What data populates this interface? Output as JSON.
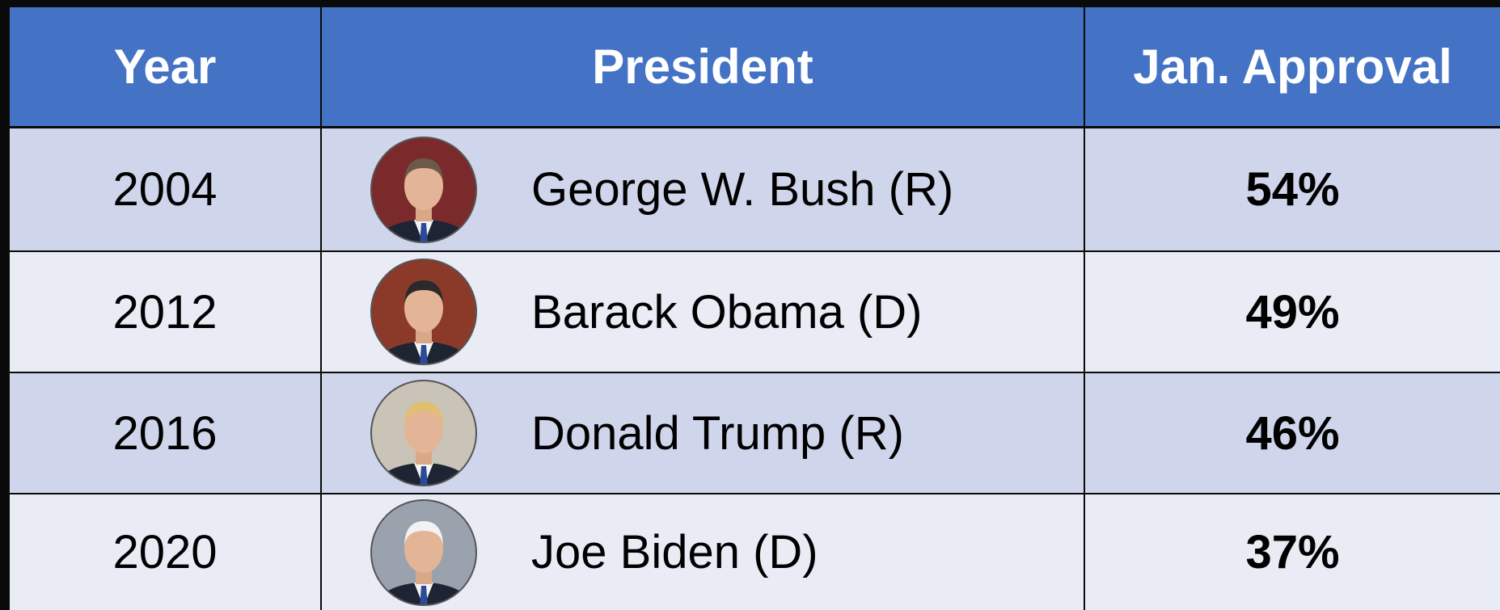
{
  "table": {
    "header": [
      "Year",
      "President",
      "Jan. Approval"
    ],
    "rows": [
      [
        "2004",
        "George W. Bush (R)",
        "54%"
      ],
      [
        "2012",
        "Barack Obama (D)",
        "49%"
      ],
      [
        "2016",
        "Donald Trump (R)",
        "46%"
      ],
      [
        "2020",
        "Joe Biden (D)",
        "37%"
      ]
    ]
  }
}
